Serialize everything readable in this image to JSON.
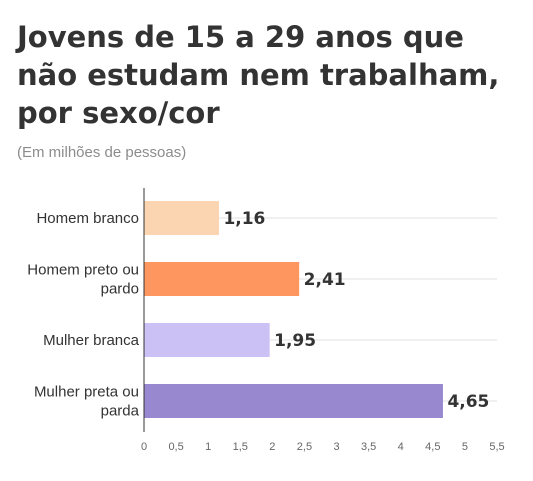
{
  "title": "Jovens de 15 a 29 anos que não estudam nem trabalham, por sexo/cor",
  "subtitle": "(Em milhões de pessoas)",
  "chart_data": {
    "type": "bar",
    "orientation": "horizontal",
    "categories": [
      [
        "Homem branco"
      ],
      [
        "Homem preto ou",
        "pardo"
      ],
      [
        "Mulher branca"
      ],
      [
        "Mulher preta ou",
        "parda"
      ]
    ],
    "values": [
      1.16,
      2.41,
      1.95,
      4.65
    ],
    "value_labels": [
      "1,16",
      "2,41",
      "1,95",
      "4,65"
    ],
    "colors": [
      "#fbd4b1",
      "#fe9660",
      "#cbc1f4",
      "#9888d0"
    ],
    "xlim": [
      0,
      5.5
    ],
    "xticks": [
      0,
      0.5,
      1,
      1.5,
      2,
      2.5,
      3,
      3.5,
      4,
      4.5,
      5,
      5.5
    ],
    "xtick_labels": [
      "0",
      "0,5",
      "1",
      "1,5",
      "2",
      "2,5",
      "3",
      "3,5",
      "4",
      "4,5",
      "5",
      "5,5"
    ],
    "grid": true
  }
}
